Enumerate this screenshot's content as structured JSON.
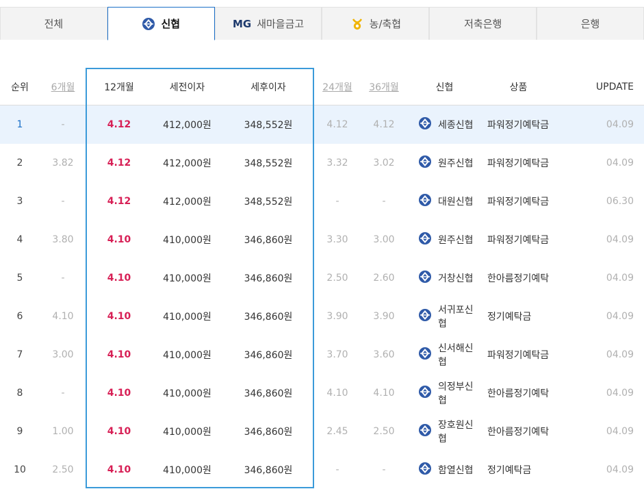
{
  "tabs": [
    {
      "label": "전체",
      "icon": null
    },
    {
      "label": "신협",
      "icon": "shinhyup-logo-icon"
    },
    {
      "label": "새마을금고",
      "icon": "mg-logo-icon",
      "prefix": "MG"
    },
    {
      "label": "농/축협",
      "icon": "nonghyup-logo-icon"
    },
    {
      "label": "저축은행",
      "icon": null
    },
    {
      "label": "은행",
      "icon": null
    }
  ],
  "active_tab": "신협",
  "colors": {
    "accent": "#1b6fc8",
    "rate_highlight": "#d71f55",
    "selected_row": "#eaf3fd",
    "column_box": "#3a9ad9"
  },
  "headers": {
    "rank": "순위",
    "m6": "6개월",
    "m12": "12개월",
    "pretax": "세전이자",
    "posttax": "세후이자",
    "m24": "24개월",
    "m36": "36개월",
    "bank": "신협",
    "product": "상품",
    "update": "UPDATE"
  },
  "rows": [
    {
      "rank": "1",
      "m6": "-",
      "m12": "4.12",
      "pretax": "412,000원",
      "posttax": "348,552원",
      "m24": "4.12",
      "m36": "4.12",
      "bank": "세종신협",
      "product": "파워정기예탁금",
      "update": "04.09"
    },
    {
      "rank": "2",
      "m6": "3.82",
      "m12": "4.12",
      "pretax": "412,000원",
      "posttax": "348,552원",
      "m24": "3.32",
      "m36": "3.02",
      "bank": "원주신협",
      "product": "파워정기예탁금",
      "update": "04.09"
    },
    {
      "rank": "3",
      "m6": "-",
      "m12": "4.12",
      "pretax": "412,000원",
      "posttax": "348,552원",
      "m24": "-",
      "m36": "-",
      "bank": "대원신협",
      "product": "파워정기예탁금",
      "update": "06.30"
    },
    {
      "rank": "4",
      "m6": "3.80",
      "m12": "4.10",
      "pretax": "410,000원",
      "posttax": "346,860원",
      "m24": "3.30",
      "m36": "3.00",
      "bank": "원주신협",
      "product": "파워정기예탁금",
      "update": "04.09"
    },
    {
      "rank": "5",
      "m6": "-",
      "m12": "4.10",
      "pretax": "410,000원",
      "posttax": "346,860원",
      "m24": "2.50",
      "m36": "2.60",
      "bank": "거창신협",
      "product": "한아름정기예탁",
      "update": "04.09"
    },
    {
      "rank": "6",
      "m6": "4.10",
      "m12": "4.10",
      "pretax": "410,000원",
      "posttax": "346,860원",
      "m24": "3.90",
      "m36": "3.90",
      "bank": "서귀포신협",
      "product": "정기예탁금",
      "update": "04.09"
    },
    {
      "rank": "7",
      "m6": "3.00",
      "m12": "4.10",
      "pretax": "410,000원",
      "posttax": "346,860원",
      "m24": "3.70",
      "m36": "3.60",
      "bank": "신서해신협",
      "product": "파워정기예탁금",
      "update": "04.09"
    },
    {
      "rank": "8",
      "m6": "-",
      "m12": "4.10",
      "pretax": "410,000원",
      "posttax": "346,860원",
      "m24": "4.10",
      "m36": "4.10",
      "bank": "의정부신협",
      "product": "한아름정기예탁",
      "update": "04.09"
    },
    {
      "rank": "9",
      "m6": "1.00",
      "m12": "4.10",
      "pretax": "410,000원",
      "posttax": "346,860원",
      "m24": "2.45",
      "m36": "2.50",
      "bank": "장호원신협",
      "product": "한아름정기예탁",
      "update": "04.09"
    },
    {
      "rank": "10",
      "m6": "2.50",
      "m12": "4.10",
      "pretax": "410,000원",
      "posttax": "346,860원",
      "m24": "-",
      "m36": "-",
      "bank": "함열신협",
      "product": "정기예탁금",
      "update": "04.09"
    }
  ]
}
